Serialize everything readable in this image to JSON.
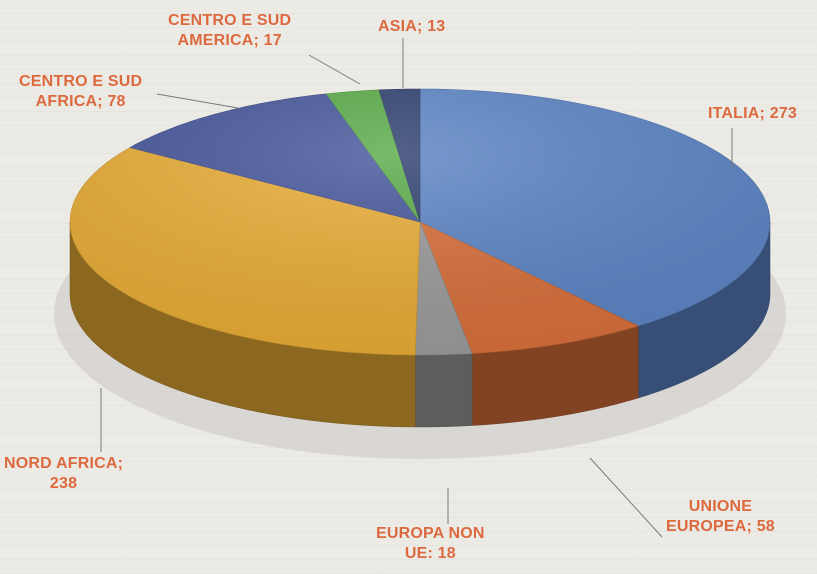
{
  "chart_data": {
    "type": "pie",
    "title": "",
    "slices": [
      {
        "label": "ITALIA",
        "value": 273,
        "text": "ITALIA; 273",
        "color": "#5b84c4"
      },
      {
        "label": "UNIONE EUROPEA",
        "value": 58,
        "text_line1": "UNIONE",
        "text_line2": "EUROPEA; 58",
        "color": "#d86f3a"
      },
      {
        "label": "EUROPA NON UE",
        "value": 18,
        "text_line1": "EUROPA NON",
        "text_line2": "UE: 18",
        "color": "#9b9b9b"
      },
      {
        "label": "NORD AFRICA",
        "value": 238,
        "text_line1": "NORD AFRICA;",
        "text_line2": "238",
        "color": "#e8ac36"
      },
      {
        "label": "CENTRO E SUD AFRICA",
        "value": 78,
        "text_line1": "CENTRO E SUD",
        "text_line2": "AFRICA; 78",
        "color": "#45559a"
      },
      {
        "label": "CENTRO E SUD AMERICA",
        "value": 17,
        "text_line1": "CENTRO E SUD",
        "text_line2": "AMERICA; 17",
        "color": "#59ab47"
      },
      {
        "label": "ASIA",
        "value": 13,
        "text": "ASIA; 13",
        "color": "#2f4070"
      }
    ],
    "label_color": "#dc6a3e",
    "style": "3d-pie"
  }
}
